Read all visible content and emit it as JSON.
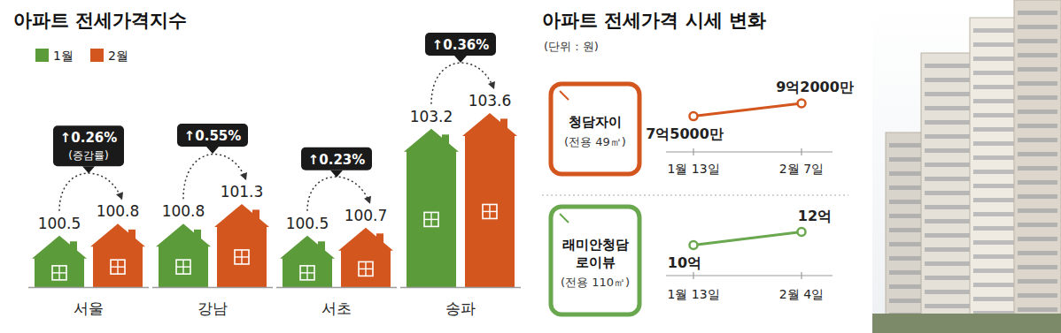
{
  "chart_data": [
    {
      "type": "bar",
      "title": "아파트 전세가격지수",
      "categories": [
        "서울",
        "강남",
        "서초",
        "송파"
      ],
      "series": [
        {
          "name": "1월",
          "color": "#5c9b3a",
          "values": [
            100.5,
            100.8,
            100.5,
            103.2
          ]
        },
        {
          "name": "2월",
          "color": "#d4561f",
          "values": [
            100.8,
            101.3,
            100.7,
            103.6
          ]
        }
      ],
      "annotations": [
        {
          "text": "↑0.26%",
          "value": 0.26,
          "note": "(증감률)"
        },
        {
          "text": "↑0.55%",
          "value": 0.55
        },
        {
          "text": "↑0.23%",
          "value": 0.23
        },
        {
          "text": "↑0.36%",
          "value": 0.36
        }
      ],
      "ylim": [
        99.2,
        104
      ],
      "data_labels": true,
      "tick_labels": "x",
      "legend": "top-left"
    },
    {
      "type": "line",
      "title": "아파트 전세가격 시세 변화",
      "subtitle": "(단위 : 원)",
      "label": [
        "청담자이"
      ],
      "sublabel": "(전용 49㎡)",
      "categories": [
        "1월 13일",
        "2월 7일"
      ],
      "values": [
        750000000,
        920000000
      ],
      "value_labels": [
        "7억5000만",
        "9억2000만"
      ],
      "color": "#d4561f",
      "ylim": [
        500000000,
        1200000000
      ],
      "marker": "circle",
      "data_labels": true,
      "tick_labels": "x"
    },
    {
      "type": "line",
      "label": [
        "래미안청담",
        "로이뷰"
      ],
      "sublabel": "(전용 110㎡)",
      "categories": [
        "1월 13일",
        "2월 4일"
      ],
      "values": [
        1000000000,
        1200000000
      ],
      "value_labels": [
        "10억",
        "12억"
      ],
      "color": "#6aa84f",
      "ylim": [
        700000000,
        1500000000
      ],
      "marker": "circle",
      "data_labels": true,
      "tick_labels": "x"
    }
  ]
}
